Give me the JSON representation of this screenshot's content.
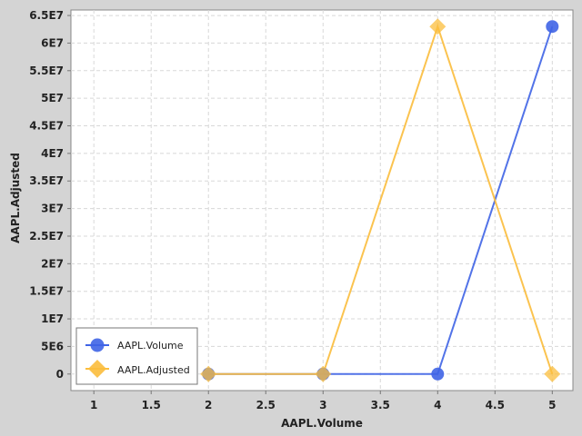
{
  "chart_data": {
    "type": "line",
    "title": "",
    "xlabel": "AAPL.Volume",
    "ylabel": "AAPL.Adjusted",
    "xlim": [
      0.8,
      5.18
    ],
    "ylim": [
      -3000000,
      66000000
    ],
    "x_ticks": [
      1,
      1.5,
      2,
      2.5,
      3,
      3.5,
      4,
      4.5,
      5
    ],
    "x_tick_labels": [
      "1",
      "1.5",
      "2",
      "2.5",
      "3",
      "3.5",
      "4",
      "4.5",
      "5"
    ],
    "y_ticks": [
      0,
      5000000,
      10000000,
      15000000,
      20000000,
      25000000,
      30000000,
      35000000,
      40000000,
      45000000,
      50000000,
      55000000,
      60000000,
      65000000
    ],
    "y_tick_labels": [
      "0",
      "5E6",
      "1E7",
      "1.5E7",
      "2E7",
      "2.5E7",
      "3E7",
      "3.5E7",
      "4E7",
      "4.5E7",
      "5E7",
      "5.5E7",
      "6E7",
      "6.5E7"
    ],
    "grid": true,
    "legend_position": "bottom-left",
    "series": [
      {
        "name": "AAPL.Volume",
        "marker": "circle",
        "color": "#3f64e6",
        "x": [
          2,
          3,
          4,
          5
        ],
        "y": [
          0,
          0,
          0,
          63000000
        ]
      },
      {
        "name": "AAPL.Adjusted",
        "marker": "diamond",
        "color": "#fbbd3c",
        "x": [
          2,
          3,
          4,
          5
        ],
        "y": [
          0,
          0,
          63000000,
          0
        ]
      }
    ]
  }
}
